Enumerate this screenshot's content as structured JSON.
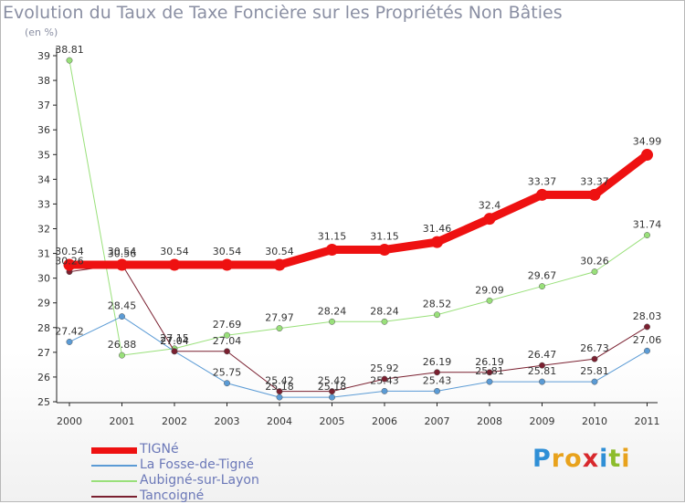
{
  "title": "Evolution du Taux de Taxe Foncière sur les Propriétés Non Bâties",
  "subtitle": "(en %)",
  "logo": {
    "letters": [
      "P",
      "r",
      "o",
      "x",
      "i",
      "t",
      "i"
    ],
    "colors": [
      "#2f8fd6",
      "#e8a21c",
      "#e8a21c",
      "#d8282c",
      "#2f8fd6",
      "#8cbc2c",
      "#e8a21c"
    ]
  },
  "chart_data": {
    "type": "line",
    "title": "Evolution du Taux de Taxe Foncière sur les Propriétés Non Bâties",
    "ylabel": "(en %)",
    "x": [
      "2000",
      "2001",
      "2002",
      "2003",
      "2004",
      "2005",
      "2006",
      "2007",
      "2008",
      "2009",
      "2010",
      "2011"
    ],
    "ylim": [
      25,
      39
    ],
    "yticks": [
      "25",
      "26",
      "27",
      "28",
      "29",
      "30",
      "31",
      "32",
      "33",
      "34",
      "35",
      "36",
      "37",
      "38",
      "39"
    ],
    "grid": false,
    "legend_position": "bottom-left",
    "series": [
      {
        "name": "TIGNé",
        "color": "#ee1111",
        "width": 9,
        "values": [
          30.54,
          30.54,
          30.54,
          30.54,
          30.54,
          31.15,
          31.15,
          31.46,
          32.4,
          33.37,
          33.37,
          34.99
        ],
        "labels": [
          "30.54",
          "30.54",
          "30.54",
          "30.54",
          "30.54",
          "31.15",
          "31.15",
          "31.46",
          "32.4",
          "33.37",
          "33.37",
          "34.99"
        ]
      },
      {
        "name": "La Fosse-de-Tigné",
        "color": "#5b9bd5",
        "width": 1,
        "values": [
          27.42,
          28.45,
          27.04,
          25.75,
          25.18,
          25.18,
          25.43,
          25.43,
          25.81,
          25.81,
          25.81,
          27.06
        ],
        "labels": [
          "27.42",
          "28.45",
          "27.04",
          "25.75",
          "25.18",
          "25.18",
          "25.43",
          "25.43",
          "25.81",
          "25.81",
          "25.81",
          "27.06"
        ]
      },
      {
        "name": "Aubigné-sur-Layon",
        "color": "#99e07a",
        "width": 1,
        "values": [
          38.81,
          26.88,
          27.15,
          27.69,
          27.97,
          28.24,
          28.24,
          28.52,
          29.09,
          29.67,
          30.26,
          31.74
        ],
        "labels": [
          "38.81",
          "26.88",
          "27.15",
          "27.69",
          "27.97",
          "28.24",
          "28.24",
          "28.52",
          "29.09",
          "29.67",
          "30.26",
          "31.74"
        ]
      },
      {
        "name": "Tancoigné",
        "color": "#7a2030",
        "width": 1,
        "values": [
          30.26,
          30.56,
          27.04,
          27.04,
          25.42,
          25.42,
          25.92,
          26.19,
          26.19,
          26.47,
          26.73,
          28.03
        ],
        "labels": [
          "30.26",
          "30.56",
          "27.04",
          "27.04",
          "25.42",
          "25.42",
          "25.92",
          "26.19",
          "26.19",
          "26.47",
          "26.73",
          "28.03"
        ]
      }
    ]
  }
}
